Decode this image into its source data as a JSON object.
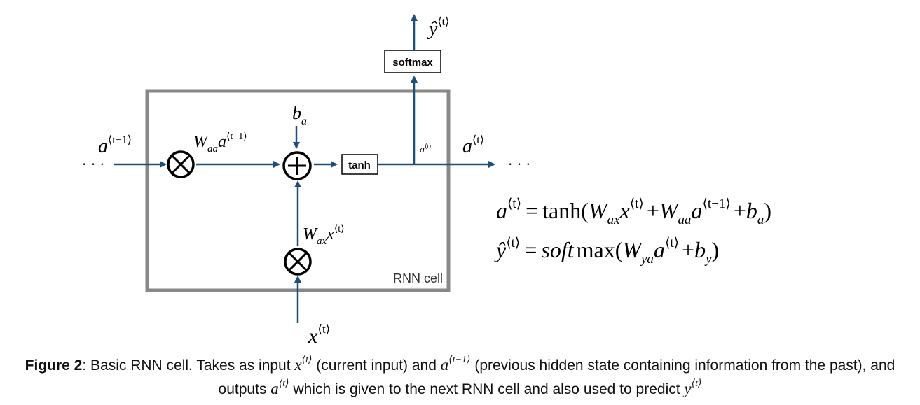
{
  "diagram": {
    "cell_label": "RNN cell",
    "tanh_label": "tanh",
    "softmax_label": "softmax",
    "ellipsis": "· · ·",
    "a_prev": {
      "base": "a",
      "sup": "⟨t−1⟩"
    },
    "waa_term": {
      "w": "W",
      "w_sub": "aa",
      "base": "a",
      "sup": "⟨t−1⟩"
    },
    "b_a": {
      "base": "b",
      "sub": "a"
    },
    "wax_term": {
      "w": "W",
      "w_sub": "ax",
      "base": "x",
      "sup": "⟨t⟩"
    },
    "x_t": {
      "base": "x",
      "sup": "⟨t⟩"
    },
    "a_t_small": {
      "base": "a",
      "sup": "⟨t⟩"
    },
    "a_t": {
      "base": "a",
      "sup": "⟨t⟩"
    },
    "y_hat": {
      "base": "ŷ",
      "sup": "⟨t⟩"
    },
    "multiply_symbol": "⊗",
    "add_symbol": "⊕"
  },
  "equations": {
    "eq1": {
      "lhs": "a",
      "lhs_sup": "⟨t⟩",
      "eq": "=",
      "fn": "tanh(",
      "w1": "W",
      "w1_sub": "ax",
      "v1": "x",
      "v1_sup": "⟨t⟩",
      "plus1": "+",
      "w2": "W",
      "w2_sub": "aa",
      "v2": "a",
      "v2_sup": "⟨t−1⟩",
      "plus2": "+",
      "b": "b",
      "b_sub": "a",
      "close": ")"
    },
    "eq2": {
      "lhs": "ŷ",
      "lhs_sup": "⟨t⟩",
      "eq": "=",
      "fn_italic": "soft",
      "fn_roman": "max(",
      "w": "W",
      "w_sub": "ya",
      "v": "a",
      "v_sup": "⟨t⟩",
      "plus": "+",
      "b": "b",
      "b_sub": "y",
      "close": ")"
    }
  },
  "caption": {
    "bold": "Figure 2",
    "part1": ": Basic RNN cell. Takes as input ",
    "x_base": "x",
    "x_sup": "⟨t⟩",
    "part2": " (current input) and ",
    "a_prev_base": "a",
    "a_prev_sup": "⟨t−1⟩",
    "part3": " (previous hidden state containing information from the past), and outputs ",
    "a_base": "a",
    "a_sup": "⟨t⟩",
    "part4": " which is given to the next RNN cell and also used to predict ",
    "y_base": "y",
    "y_sup": "⟨t⟩"
  },
  "colors": {
    "arrow": "#1f4e79",
    "cell_border": "#888888",
    "text": "#000000"
  }
}
